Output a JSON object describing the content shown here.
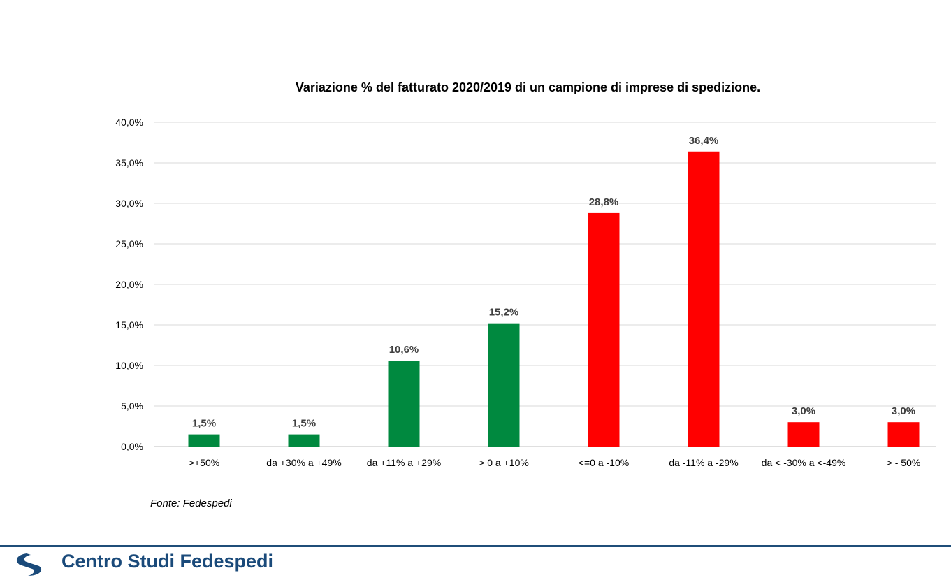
{
  "chart_data": {
    "type": "bar",
    "title": "Variazione % del fatturato 2020/2019 di un campione di imprese di spedizione.",
    "categories": [
      ">+50%",
      "da +30% a +49%",
      "da +11% a +29%",
      "> 0 a +10%",
      "<=0 a -10%",
      "da -11% a -29%",
      "da < -30% a <-49%",
      "> - 50%"
    ],
    "values": [
      1.5,
      1.5,
      10.6,
      15.2,
      28.8,
      36.4,
      3.0,
      3.0
    ],
    "data_labels": [
      "1,5%",
      "1,5%",
      "10,6%",
      "15,2%",
      "28,8%",
      "36,4%",
      "3,0%",
      "3,0%"
    ],
    "bar_colors": [
      "#00893f",
      "#00893f",
      "#00893f",
      "#00893f",
      "#ff0000",
      "#ff0000",
      "#ff0000",
      "#ff0000"
    ],
    "ylim": [
      0,
      40
    ],
    "yticks": [
      0,
      5,
      10,
      15,
      20,
      25,
      30,
      35,
      40
    ],
    "ytick_labels": [
      "0,0%",
      "5,0%",
      "10,0%",
      "15,0%",
      "20,0%",
      "25,0%",
      "30,0%",
      "35,0%",
      "40,0%"
    ],
    "grid": true,
    "xlabel": "",
    "ylabel": ""
  },
  "source": "Fonte: Fedespedi",
  "footer": {
    "brand": "Centro Studi Fedespedi",
    "rule_color": "#1f4e79"
  }
}
